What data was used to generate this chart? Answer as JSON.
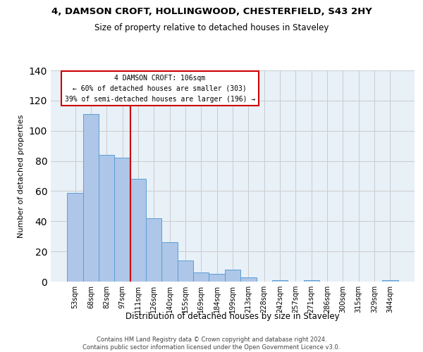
{
  "title": "4, DAMSON CROFT, HOLLINGWOOD, CHESTERFIELD, S43 2HY",
  "subtitle": "Size of property relative to detached houses in Staveley",
  "xlabel": "Distribution of detached houses by size in Staveley",
  "ylabel": "Number of detached properties",
  "bar_labels": [
    "53sqm",
    "68sqm",
    "82sqm",
    "97sqm",
    "111sqm",
    "126sqm",
    "140sqm",
    "155sqm",
    "169sqm",
    "184sqm",
    "199sqm",
    "213sqm",
    "228sqm",
    "242sqm",
    "257sqm",
    "271sqm",
    "286sqm",
    "300sqm",
    "315sqm",
    "329sqm",
    "344sqm"
  ],
  "bar_values": [
    59,
    111,
    84,
    82,
    68,
    42,
    26,
    14,
    6,
    5,
    8,
    3,
    0,
    1,
    0,
    1,
    0,
    0,
    0,
    0,
    1
  ],
  "bar_color": "#aec6e8",
  "bar_edge_color": "#5a9fd4",
  "vline_x": 3.5,
  "vline_color": "#cc0000",
  "annotation_title": "4 DAMSON CROFT: 106sqm",
  "annotation_line1": "← 60% of detached houses are smaller (303)",
  "annotation_line2": "39% of semi-detached houses are larger (196) →",
  "annotation_box_color": "#ffffff",
  "annotation_box_edge": "#cc0000",
  "ylim": [
    0,
    140
  ],
  "yticks": [
    0,
    20,
    40,
    60,
    80,
    100,
    120,
    140
  ],
  "background_color": "#ffffff",
  "grid_color": "#cccccc",
  "footer_line1": "Contains HM Land Registry data © Crown copyright and database right 2024.",
  "footer_line2": "Contains public sector information licensed under the Open Government Licence v3.0."
}
